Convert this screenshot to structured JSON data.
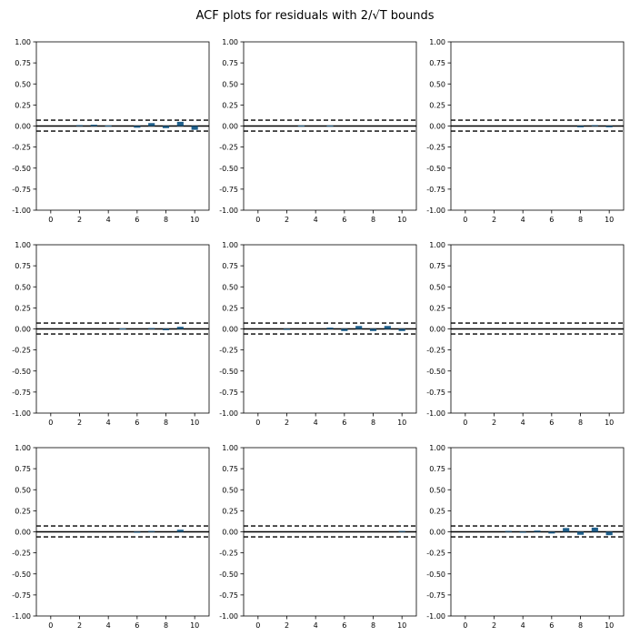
{
  "figure": {
    "title": "ACF plots for residuals with 2/√T bounds"
  },
  "chart_data": [
    {
      "type": "bar",
      "panel": "r1c1",
      "xlim": [
        -1,
        11
      ],
      "ylim": [
        -1.0,
        1.0
      ],
      "x": [
        1,
        2,
        3,
        4,
        5,
        6,
        7,
        8,
        9,
        10
      ],
      "values": [
        0.0,
        0.01,
        0.015,
        0.005,
        0.0,
        -0.02,
        0.035,
        -0.025,
        0.05,
        -0.045
      ],
      "bounds": [
        0.07,
        -0.06
      ],
      "bar_color": "#1f5f8b",
      "yticks": [
        "-1.00",
        "-0.75",
        "-0.50",
        "-0.25",
        "0.00",
        "0.25",
        "0.50",
        "0.75",
        "1.00"
      ],
      "xticks": [
        "0",
        "2",
        "4",
        "6",
        "8",
        "10"
      ],
      "grid": false
    },
    {
      "type": "bar",
      "panel": "r1c2",
      "xlim": [
        -1,
        11
      ],
      "ylim": [
        -1.0,
        1.0
      ],
      "x": [
        1,
        2,
        3,
        4,
        5,
        6,
        7,
        8,
        9,
        10
      ],
      "values": [
        0.0,
        0.0,
        0.005,
        0.0,
        0.005,
        0.0,
        0.0,
        0.0,
        0.0,
        0.0
      ],
      "bounds": [
        0.07,
        -0.06
      ],
      "bar_color": "#1f5f8b",
      "yticks": [
        "-1.00",
        "-0.75",
        "-0.50",
        "-0.25",
        "0.00",
        "0.25",
        "0.50",
        "0.75",
        "1.00"
      ],
      "xticks": [
        "0",
        "2",
        "4",
        "6",
        "8",
        "10"
      ],
      "grid": false
    },
    {
      "type": "bar",
      "panel": "r1c3",
      "xlim": [
        -1,
        11
      ],
      "ylim": [
        -1.0,
        1.0
      ],
      "x": [
        1,
        2,
        3,
        4,
        5,
        6,
        7,
        8,
        9,
        10
      ],
      "values": [
        0.0,
        0.0,
        0.0,
        0.0,
        0.0,
        0.0,
        0.0,
        -0.015,
        0.01,
        -0.015
      ],
      "bounds": [
        0.07,
        -0.06
      ],
      "bar_color": "#1f5f8b",
      "yticks": [
        "-1.00",
        "-0.75",
        "-0.50",
        "-0.25",
        "0.00",
        "0.25",
        "0.50",
        "0.75",
        "1.00"
      ],
      "xticks": [
        "0",
        "2",
        "4",
        "6",
        "8",
        "10"
      ],
      "grid": false
    },
    {
      "type": "bar",
      "panel": "r2c1",
      "xlim": [
        -1,
        11
      ],
      "ylim": [
        -1.0,
        1.0
      ],
      "x": [
        1,
        2,
        3,
        4,
        5,
        6,
        7,
        8,
        9,
        10
      ],
      "values": [
        0.0,
        0.0,
        0.0,
        0.0,
        0.005,
        0.0,
        0.01,
        -0.015,
        0.025,
        0.0
      ],
      "bounds": [
        0.07,
        -0.06
      ],
      "bar_color": "#1f5f8b",
      "yticks": [
        "-1.00",
        "-0.75",
        "-0.50",
        "-0.25",
        "0.00",
        "0.25",
        "0.50",
        "0.75",
        "1.00"
      ],
      "xticks": [
        "0",
        "2",
        "4",
        "6",
        "8",
        "10"
      ],
      "grid": false
    },
    {
      "type": "bar",
      "panel": "r2c2",
      "xlim": [
        -1,
        11
      ],
      "ylim": [
        -1.0,
        1.0
      ],
      "x": [
        1,
        2,
        3,
        4,
        5,
        6,
        7,
        8,
        9,
        10
      ],
      "values": [
        0.0,
        -0.01,
        0.0,
        0.0,
        0.015,
        -0.025,
        0.035,
        -0.025,
        0.035,
        -0.025
      ],
      "bounds": [
        0.07,
        -0.06
      ],
      "bar_color": "#1f5f8b",
      "yticks": [
        "-1.00",
        "-0.75",
        "-0.50",
        "-0.25",
        "0.00",
        "0.25",
        "0.50",
        "0.75",
        "1.00"
      ],
      "xticks": [
        "0",
        "2",
        "4",
        "6",
        "8",
        "10"
      ],
      "grid": false
    },
    {
      "type": "bar",
      "panel": "r2c3",
      "xlim": [
        -1,
        11
      ],
      "ylim": [
        -1.0,
        1.0
      ],
      "x": [
        1,
        2,
        3,
        4,
        5,
        6,
        7,
        8,
        9,
        10
      ],
      "values": [
        0.0,
        0.0,
        0.0,
        0.0,
        0.0,
        0.0,
        0.0,
        0.0,
        0.0,
        0.0
      ],
      "bounds": [
        0.07,
        -0.06
      ],
      "bar_color": "#1f5f8b",
      "yticks": [
        "-1.00",
        "-0.75",
        "-0.50",
        "-0.25",
        "0.00",
        "0.25",
        "0.50",
        "0.75",
        "1.00"
      ],
      "xticks": [
        "0",
        "2",
        "4",
        "6",
        "8",
        "10"
      ],
      "grid": false
    },
    {
      "type": "bar",
      "panel": "r3c1",
      "xlim": [
        -1,
        11
      ],
      "ylim": [
        -1.0,
        1.0
      ],
      "x": [
        1,
        2,
        3,
        4,
        5,
        6,
        7,
        8,
        9,
        10
      ],
      "values": [
        0.0,
        0.0,
        0.0,
        0.0,
        0.0,
        -0.01,
        0.01,
        0.0,
        0.025,
        0.0
      ],
      "bounds": [
        0.07,
        -0.06
      ],
      "bar_color": "#1f5f8b",
      "yticks": [
        "-1.00",
        "-0.75",
        "-0.50",
        "-0.25",
        "0.00",
        "0.25",
        "0.50",
        "0.75",
        "1.00"
      ],
      "xticks": [
        "0",
        "2",
        "4",
        "6",
        "8",
        "10"
      ],
      "grid": false
    },
    {
      "type": "bar",
      "panel": "r3c2",
      "xlim": [
        -1,
        11
      ],
      "ylim": [
        -1.0,
        1.0
      ],
      "x": [
        1,
        2,
        3,
        4,
        5,
        6,
        7,
        8,
        9,
        10
      ],
      "values": [
        0.0,
        0.0,
        0.0,
        0.0,
        0.0,
        0.0,
        0.0,
        0.0,
        0.0,
        0.01
      ],
      "bounds": [
        0.07,
        -0.06
      ],
      "bar_color": "#1f5f8b",
      "yticks": [
        "-1.00",
        "-0.75",
        "-0.50",
        "-0.25",
        "0.00",
        "0.25",
        "0.50",
        "0.75",
        "1.00"
      ],
      "xticks": [
        "0",
        "2",
        "4",
        "6",
        "8",
        "10"
      ],
      "grid": false
    },
    {
      "type": "bar",
      "panel": "r3c3",
      "xlim": [
        -1,
        11
      ],
      "ylim": [
        -1.0,
        1.0
      ],
      "x": [
        1,
        2,
        3,
        4,
        5,
        6,
        7,
        8,
        9,
        10
      ],
      "values": [
        0.0,
        0.0,
        0.01,
        -0.01,
        0.015,
        -0.02,
        0.045,
        -0.035,
        0.05,
        -0.04
      ],
      "bounds": [
        0.07,
        -0.06
      ],
      "bar_color": "#1f5f8b",
      "yticks": [
        "-1.00",
        "-0.75",
        "-0.50",
        "-0.25",
        "0.00",
        "0.25",
        "0.50",
        "0.75",
        "1.00"
      ],
      "xticks": [
        "0",
        "2",
        "4",
        "6",
        "8",
        "10"
      ],
      "grid": false
    }
  ]
}
